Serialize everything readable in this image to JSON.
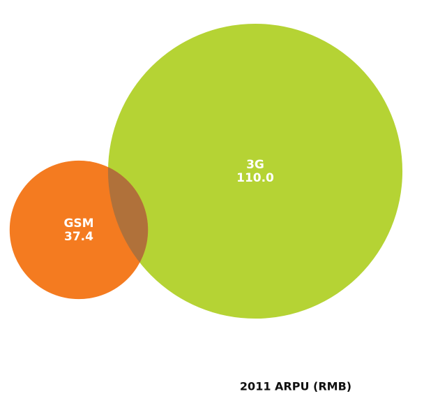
{
  "chart_data": {
    "type": "bubble",
    "title": "2011 ARPU (RMB)",
    "categories": [
      "GSM",
      "3G"
    ],
    "values": [
      37.4,
      110.0
    ],
    "value_labels": [
      "37.4",
      "110.0"
    ],
    "colors": [
      "#f47b20",
      "#b5d334"
    ]
  }
}
